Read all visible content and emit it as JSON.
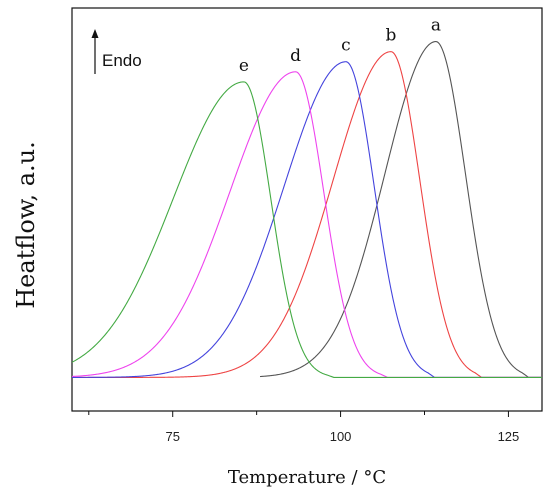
{
  "chart_data": {
    "type": "line",
    "title": "",
    "xlabel": "Temperature / °C",
    "ylabel": "Heatflow, a.u.",
    "annotation": "Endo",
    "xlim": [
      60,
      130
    ],
    "ylim": [
      -0.1,
      1.1
    ],
    "xticks": [
      75,
      100,
      125
    ],
    "grid": false,
    "legend": "none",
    "series": [
      {
        "name": "a",
        "color": "#555555",
        "peak_x": 114.2,
        "peak_y": 1.0,
        "x_start": 88.0,
        "x_end": 127.0,
        "left_sigma": 7.6,
        "right_sigma": 4.4
      },
      {
        "name": "b",
        "color": "#ee4444",
        "peak_x": 107.5,
        "peak_y": 0.97,
        "x_start": 60.0,
        "x_end": 120.0,
        "left_sigma": 8.6,
        "right_sigma": 4.3
      },
      {
        "name": "c",
        "color": "#4444dd",
        "peak_x": 100.8,
        "peak_y": 0.94,
        "x_start": 60.0,
        "x_end": 113.0,
        "left_sigma": 9.2,
        "right_sigma": 4.2
      },
      {
        "name": "d",
        "color": "#ee44ee",
        "peak_x": 93.3,
        "peak_y": 0.91,
        "x_start": 60.0,
        "x_end": 106.0,
        "left_sigma": 9.8,
        "right_sigma": 4.2
      },
      {
        "name": "e",
        "color": "#44aa44",
        "peak_x": 85.6,
        "peak_y": 0.88,
        "x_start": 60.0,
        "x_end": 98.0,
        "left_sigma": 10.5,
        "right_sigma": 4.0
      }
    ]
  }
}
